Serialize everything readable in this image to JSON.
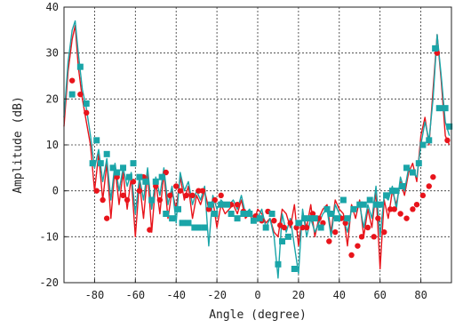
{
  "chart_data": {
    "type": "line",
    "title": "",
    "xlabel": "Angle (degree)",
    "ylabel": "Amplitude (dB)",
    "xlim": [
      -95,
      95
    ],
    "ylim": [
      -20,
      40
    ],
    "xticks": [
      -80,
      -60,
      -40,
      -20,
      0,
      20,
      40,
      60,
      80
    ],
    "yticks": [
      -20,
      -10,
      0,
      10,
      20,
      30,
      40
    ],
    "xtick_labels": [
      "-80",
      "-60",
      "-40",
      "-20",
      "0",
      "20",
      "40",
      "60",
      "80"
    ],
    "ytick_labels": [
      "-20",
      "-10",
      "0",
      "10",
      "20",
      "30",
      "40"
    ],
    "grid": true,
    "grid_style": "dashed",
    "series": [
      {
        "color": "#e8141b",
        "marker": "circle",
        "x": [
          -95,
          -93,
          -91,
          -89.5,
          -88,
          -86,
          -84,
          -82,
          -80,
          -78,
          -76,
          -74,
          -72,
          -70,
          -68,
          -66,
          -64,
          -62,
          -60,
          -58,
          -56,
          -54,
          -52,
          -50,
          -48,
          -46,
          -44,
          -42,
          -40,
          -38,
          -36,
          -34,
          -32,
          -30,
          -28,
          -26,
          -24,
          -22,
          -20,
          -18,
          -16,
          -14,
          -12,
          -10,
          -8,
          -6,
          -4,
          -2,
          0,
          2,
          4,
          6,
          8,
          10,
          12,
          14,
          16,
          18,
          20,
          22,
          24,
          26,
          28,
          30,
          32,
          34,
          36,
          38,
          40,
          42,
          44,
          46,
          48,
          50,
          52,
          54,
          56,
          58,
          60,
          62,
          64,
          66,
          68,
          70,
          72,
          74,
          76,
          78,
          80,
          82,
          84,
          86,
          88,
          90,
          92,
          94
        ],
        "y": [
          14,
          26,
          33,
          36,
          27,
          20,
          15,
          10,
          0,
          8,
          -2,
          6,
          -6,
          5,
          -3,
          4,
          -4,
          3,
          -10,
          2,
          -6,
          4,
          -9,
          2,
          -5,
          4,
          -6,
          0,
          -4,
          3,
          -2,
          1,
          -6,
          -1,
          -3,
          0,
          -4,
          -2,
          -8,
          -3,
          -5,
          -4,
          -3,
          -5,
          -2,
          -6,
          -5,
          -7,
          -4,
          -5,
          -7,
          -6,
          -9,
          -10,
          -4,
          -5,
          -8,
          -3,
          -12,
          -5,
          -8,
          -3,
          -10,
          -6,
          -4,
          -3,
          -9,
          -2,
          -4,
          -5,
          -12,
          -3,
          -6,
          -2,
          -10,
          -4,
          -8,
          0,
          -17,
          -2,
          -6,
          0,
          -3,
          2,
          -1,
          4,
          6,
          2,
          12,
          16,
          10,
          22,
          34,
          24,
          12,
          10
        ],
        "markers_x": [
          -91,
          -87,
          -84,
          -79,
          -76,
          -74,
          -71,
          -69,
          -66,
          -64,
          -61,
          -58,
          -56,
          -53,
          -50,
          -48,
          -45,
          -43,
          -40,
          -38,
          -35,
          -32,
          -29,
          -27,
          -24,
          -21,
          -18,
          -16,
          -13,
          -10,
          -7,
          -4,
          -1,
          2,
          5,
          8,
          11,
          13,
          16,
          19,
          22,
          24,
          27,
          30,
          32,
          35,
          38,
          41,
          43,
          46,
          49,
          51,
          54,
          57,
          59,
          62,
          65,
          67,
          70,
          73,
          76,
          78,
          81,
          84,
          86,
          88,
          91,
          93
        ],
        "markers_y": [
          24,
          21,
          17,
          0,
          -2,
          -6,
          5,
          3,
          -1,
          -2,
          2,
          0,
          3,
          -8.5,
          1,
          -2,
          4,
          -1,
          1,
          0,
          -1,
          -1,
          0,
          0,
          -4,
          -2,
          -1,
          -3,
          -3,
          -3,
          -4.5,
          -5,
          -5.5,
          -6.5,
          -4.5,
          -6.5,
          -7.5,
          -8,
          -7,
          -8,
          -8,
          -8,
          -5,
          -6,
          -7,
          -11,
          -9,
          -6,
          -7,
          -14,
          -12,
          -10,
          -8,
          -10,
          -6,
          -9,
          -4,
          -4,
          -5,
          -6,
          -4,
          -3,
          -1,
          1,
          3,
          30,
          18,
          11
        ]
      },
      {
        "color": "#1aa5a8",
        "marker": "square",
        "x": [
          -95,
          -93,
          -91,
          -89.5,
          -88,
          -86,
          -84,
          -82,
          -80,
          -78,
          -76,
          -74,
          -72,
          -70,
          -68,
          -66,
          -64,
          -62,
          -60,
          -58,
          -56,
          -54,
          -52,
          -50,
          -48,
          -46,
          -44,
          -42,
          -40,
          -38,
          -36,
          -34,
          -32,
          -30,
          -28,
          -26,
          -24,
          -22,
          -20,
          -18,
          -16,
          -14,
          -12,
          -10,
          -8,
          -6,
          -4,
          -2,
          0,
          2,
          4,
          6,
          8,
          10,
          12,
          14,
          16,
          18,
          20,
          22,
          24,
          26,
          28,
          30,
          32,
          34,
          36,
          38,
          40,
          42,
          44,
          46,
          48,
          50,
          52,
          54,
          56,
          58,
          60,
          62,
          64,
          66,
          68,
          70,
          72,
          74,
          76,
          78,
          80,
          82,
          84,
          86,
          88,
          90,
          92,
          94
        ],
        "y": [
          16,
          28,
          35,
          37,
          30,
          22,
          18,
          12,
          5,
          9,
          2,
          7,
          -2,
          6,
          0,
          5,
          1,
          4,
          -5,
          3,
          -2,
          5,
          -4,
          3,
          -1,
          5,
          -3,
          1,
          -7,
          4,
          0,
          2,
          -3,
          0,
          -2,
          1,
          -12,
          -1,
          -4,
          -2,
          -3,
          -3,
          -2,
          -4,
          -1,
          -5,
          -4,
          -6,
          -6,
          -4,
          -8,
          -6,
          -10,
          -19,
          -5,
          -9,
          -6,
          -12,
          -18,
          -4,
          -10,
          -6,
          -9,
          -7,
          -5,
          -4,
          -10,
          -3,
          -5,
          -6,
          -9,
          -4,
          -4,
          -3,
          -8,
          -3,
          -6,
          1,
          -10,
          -1,
          -2,
          1,
          -4,
          3,
          0,
          5,
          4,
          3,
          10,
          15,
          11,
          20,
          34,
          25,
          15,
          12
        ],
        "markers_x": [
          -91,
          -87,
          -84,
          -81,
          -79,
          -77,
          -74,
          -71,
          -69,
          -66,
          -63,
          -61,
          -58,
          -55,
          -52,
          -50,
          -47,
          -45,
          -42,
          -39,
          -37,
          -34,
          -31,
          -29,
          -26,
          -23,
          -21,
          -18,
          -15,
          -13,
          -10,
          -7,
          -4,
          -2,
          1,
          4,
          7,
          10,
          12,
          15,
          18,
          20,
          23,
          26,
          28,
          31,
          34,
          36,
          39,
          42,
          44,
          47,
          50,
          52,
          55,
          58,
          60,
          63,
          66,
          68,
          71,
          73,
          76,
          79,
          81,
          84,
          87,
          89,
          92,
          94
        ],
        "markers_y": [
          21,
          27,
          19,
          6,
          11,
          6,
          8,
          5,
          4,
          5,
          3,
          6,
          3,
          2,
          -2,
          2,
          3,
          -5,
          -6,
          -4,
          -7,
          -7,
          -8,
          -8,
          -8,
          -3,
          -5,
          -3,
          -3,
          -5,
          -6,
          -5,
          -5,
          -6.5,
          -6,
          -8,
          -5,
          -16,
          -11,
          -10,
          -17,
          -7,
          -6,
          -6,
          -6,
          -8,
          -4,
          -5,
          -6,
          -2,
          -6,
          -4,
          -3,
          -3,
          -2,
          -3,
          -3,
          -1,
          0,
          0,
          1,
          5,
          4,
          6,
          10,
          11,
          31,
          18,
          18,
          14
        ]
      }
    ]
  }
}
